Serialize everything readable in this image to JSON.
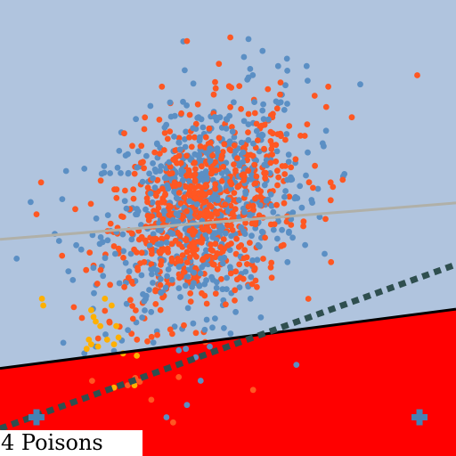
{
  "caption": "4 Poisons",
  "chart_data": {
    "type": "scatter",
    "title": "",
    "xlabel": "",
    "ylabel": "",
    "xlim": [
      0,
      10
    ],
    "ylim": [
      0,
      10
    ],
    "grid": false,
    "legend": "none",
    "colors": {
      "background": "#b0c4de",
      "region_negative": "#ff0000",
      "class_a": "#ff5722",
      "class_b": "#5b8fc4",
      "poison": "#ffb000",
      "poison_marker": "#4682b4",
      "boundary_clean": "#000000",
      "boundary_poisoned": "#2f4f4f",
      "boundary_reference": "#b0b0a8"
    },
    "lines": [
      {
        "style": "solid",
        "color": "#000000",
        "x": [
          0,
          10
        ],
        "y": [
          1.92,
          3.22
        ]
      },
      {
        "style": "dashed",
        "color": "#2f4f4f",
        "x": [
          0,
          10
        ],
        "y": [
          0.6,
          4.2
        ]
      },
      {
        "style": "solid",
        "color": "#b0b0a8",
        "x": [
          0,
          10
        ],
        "y": [
          4.75,
          5.55
        ]
      }
    ],
    "clusters": [
      {
        "name": "",
        "color": "#ff5722",
        "count": 700,
        "cx": 4.4,
        "cy": 5.3,
        "sx": 1.05,
        "sy": 1.15,
        "corr": 0.35
      },
      {
        "name": "",
        "color": "#5b8fc4",
        "count": 650,
        "cx": 4.5,
        "cy": 5.5,
        "sx": 1.1,
        "sy": 1.2,
        "corr": 0.3
      }
    ],
    "scatter_extra": [
      {
        "color": "#ff5722",
        "points": [
          [
            4.1,
            9.1
          ],
          [
            5.05,
            9.18
          ],
          [
            4.8,
            8.6
          ],
          [
            7.2,
            8.1
          ],
          [
            9.15,
            8.35
          ],
          [
            3.55,
            8.1
          ],
          [
            6.9,
            7.9
          ],
          [
            7.3,
            5.9
          ],
          [
            7.25,
            6.0
          ],
          [
            3.1,
            6.8
          ],
          [
            2.9,
            6.8
          ],
          [
            0.9,
            6.0
          ],
          [
            0.8,
            5.3
          ],
          [
            2.5,
            4.6
          ],
          [
            5.55,
            1.45
          ],
          [
            4.5,
            2.5
          ],
          [
            3.0,
            1.65
          ],
          [
            2.8,
            1.55
          ]
        ]
      },
      {
        "color": "#5b8fc4",
        "points": [
          [
            5.35,
            8.75
          ],
          [
            6.1,
            8.55
          ],
          [
            6.3,
            8.45
          ],
          [
            7.9,
            8.15
          ],
          [
            5.45,
            8.3
          ],
          [
            1.45,
            6.25
          ],
          [
            1.85,
            6.3
          ],
          [
            1.5,
            4.05
          ],
          [
            3.65,
            0.85
          ],
          [
            4.1,
            1.12
          ],
          [
            4.4,
            1.65
          ],
          [
            4.6,
            2.4
          ],
          [
            6.5,
            2.0
          ],
          [
            2.1,
            2.4
          ],
          [
            2.5,
            2.3
          ],
          [
            1.85,
            2.25
          ]
        ]
      },
      {
        "color": "#ffb000",
        "points": [
          [
            0.92,
            3.45
          ],
          [
            0.95,
            3.3
          ],
          [
            2.0,
            3.2
          ],
          [
            2.05,
            3.05
          ],
          [
            2.3,
            3.45
          ],
          [
            2.45,
            3.3
          ],
          [
            2.1,
            2.95
          ],
          [
            2.2,
            2.85
          ],
          [
            2.55,
            2.85
          ],
          [
            2.35,
            2.55
          ],
          [
            2.6,
            2.6
          ],
          [
            2.5,
            2.45
          ],
          [
            2.15,
            2.4
          ],
          [
            2.0,
            2.45
          ],
          [
            2.7,
            2.25
          ],
          [
            3.0,
            2.2
          ],
          [
            1.95,
            2.55
          ],
          [
            1.9,
            2.35
          ],
          [
            2.5,
            1.5
          ],
          [
            2.95,
            1.55
          ]
        ]
      }
    ],
    "poison_markers": [
      {
        "x": 0.8,
        "y": 0.85
      },
      {
        "x": 9.2,
        "y": 0.85
      }
    ]
  }
}
